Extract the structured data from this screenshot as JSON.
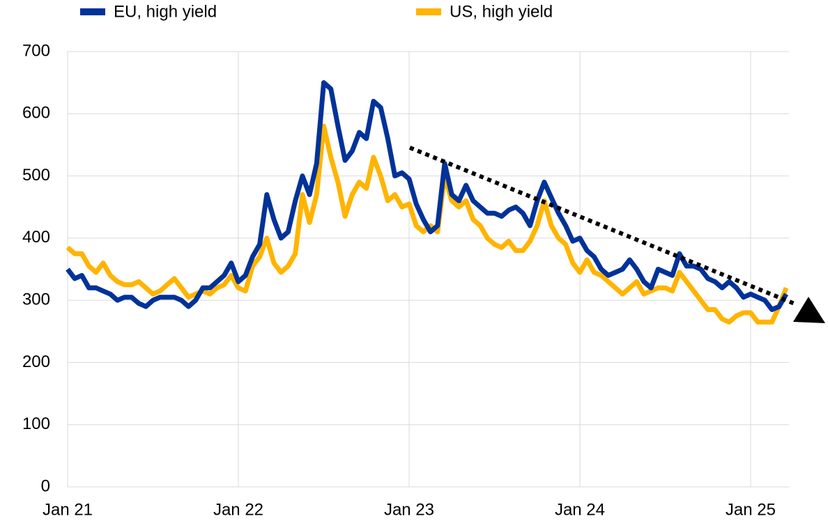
{
  "chart_data": {
    "type": "line",
    "categories": [
      "Jan 21",
      null,
      null,
      null,
      null,
      null,
      null,
      null,
      null,
      null,
      null,
      null,
      null,
      null,
      null,
      null,
      null,
      null,
      null,
      null,
      null,
      null,
      null,
      null,
      "Jan 22",
      null,
      null,
      null,
      null,
      null,
      null,
      null,
      null,
      null,
      null,
      null,
      null,
      null,
      null,
      null,
      null,
      null,
      null,
      null,
      null,
      null,
      null,
      null,
      "Jan 23",
      null,
      null,
      null,
      null,
      null,
      null,
      null,
      null,
      null,
      null,
      null,
      null,
      null,
      null,
      null,
      null,
      null,
      null,
      null,
      null,
      null,
      null,
      null,
      "Jan 24",
      null,
      null,
      null,
      null,
      null,
      null,
      null,
      null,
      null,
      null,
      null,
      null,
      null,
      null,
      null,
      null,
      null,
      null,
      null,
      null,
      null,
      null,
      null,
      "Jan 25",
      null,
      null,
      null,
      null,
      null
    ],
    "series": [
      {
        "name": "EU, high yield",
        "color": "#003299",
        "values": [
          350,
          335,
          340,
          320,
          320,
          315,
          310,
          300,
          305,
          305,
          295,
          290,
          300,
          305,
          305,
          305,
          300,
          290,
          300,
          320,
          320,
          330,
          340,
          360,
          330,
          340,
          370,
          390,
          470,
          430,
          400,
          410,
          460,
          500,
          470,
          520,
          650,
          640,
          580,
          525,
          540,
          570,
          560,
          620,
          610,
          560,
          500,
          505,
          495,
          455,
          430,
          410,
          420,
          520,
          470,
          460,
          485,
          460,
          450,
          440,
          440,
          435,
          445,
          450,
          440,
          420,
          460,
          490,
          465,
          440,
          420,
          395,
          400,
          380,
          370,
          350,
          340,
          345,
          350,
          365,
          350,
          330,
          320,
          350,
          345,
          340,
          375,
          355,
          355,
          350,
          335,
          330,
          320,
          330,
          320,
          305,
          310,
          305,
          300,
          285,
          290,
          310
        ]
      },
      {
        "name": "US, high yield",
        "color": "#ffb400",
        "values": [
          385,
          375,
          375,
          355,
          345,
          360,
          340,
          330,
          325,
          325,
          330,
          320,
          310,
          315,
          325,
          335,
          320,
          305,
          310,
          315,
          310,
          320,
          325,
          340,
          320,
          315,
          355,
          370,
          400,
          360,
          345,
          355,
          375,
          470,
          425,
          470,
          580,
          530,
          490,
          435,
          470,
          490,
          480,
          530,
          500,
          460,
          470,
          450,
          455,
          420,
          410,
          420,
          410,
          500,
          460,
          450,
          460,
          430,
          420,
          400,
          390,
          385,
          395,
          380,
          380,
          395,
          420,
          460,
          420,
          400,
          390,
          360,
          345,
          365,
          345,
          340,
          330,
          320,
          310,
          320,
          330,
          310,
          315,
          320,
          320,
          315,
          345,
          330,
          315,
          300,
          285,
          285,
          270,
          265,
          275,
          280,
          280,
          265,
          265,
          265,
          290,
          320
        ]
      }
    ],
    "ylim": [
      0,
      700
    ],
    "yticks": [
      0,
      100,
      200,
      300,
      400,
      500,
      600,
      700
    ],
    "grid": true,
    "legend": "top"
  }
}
